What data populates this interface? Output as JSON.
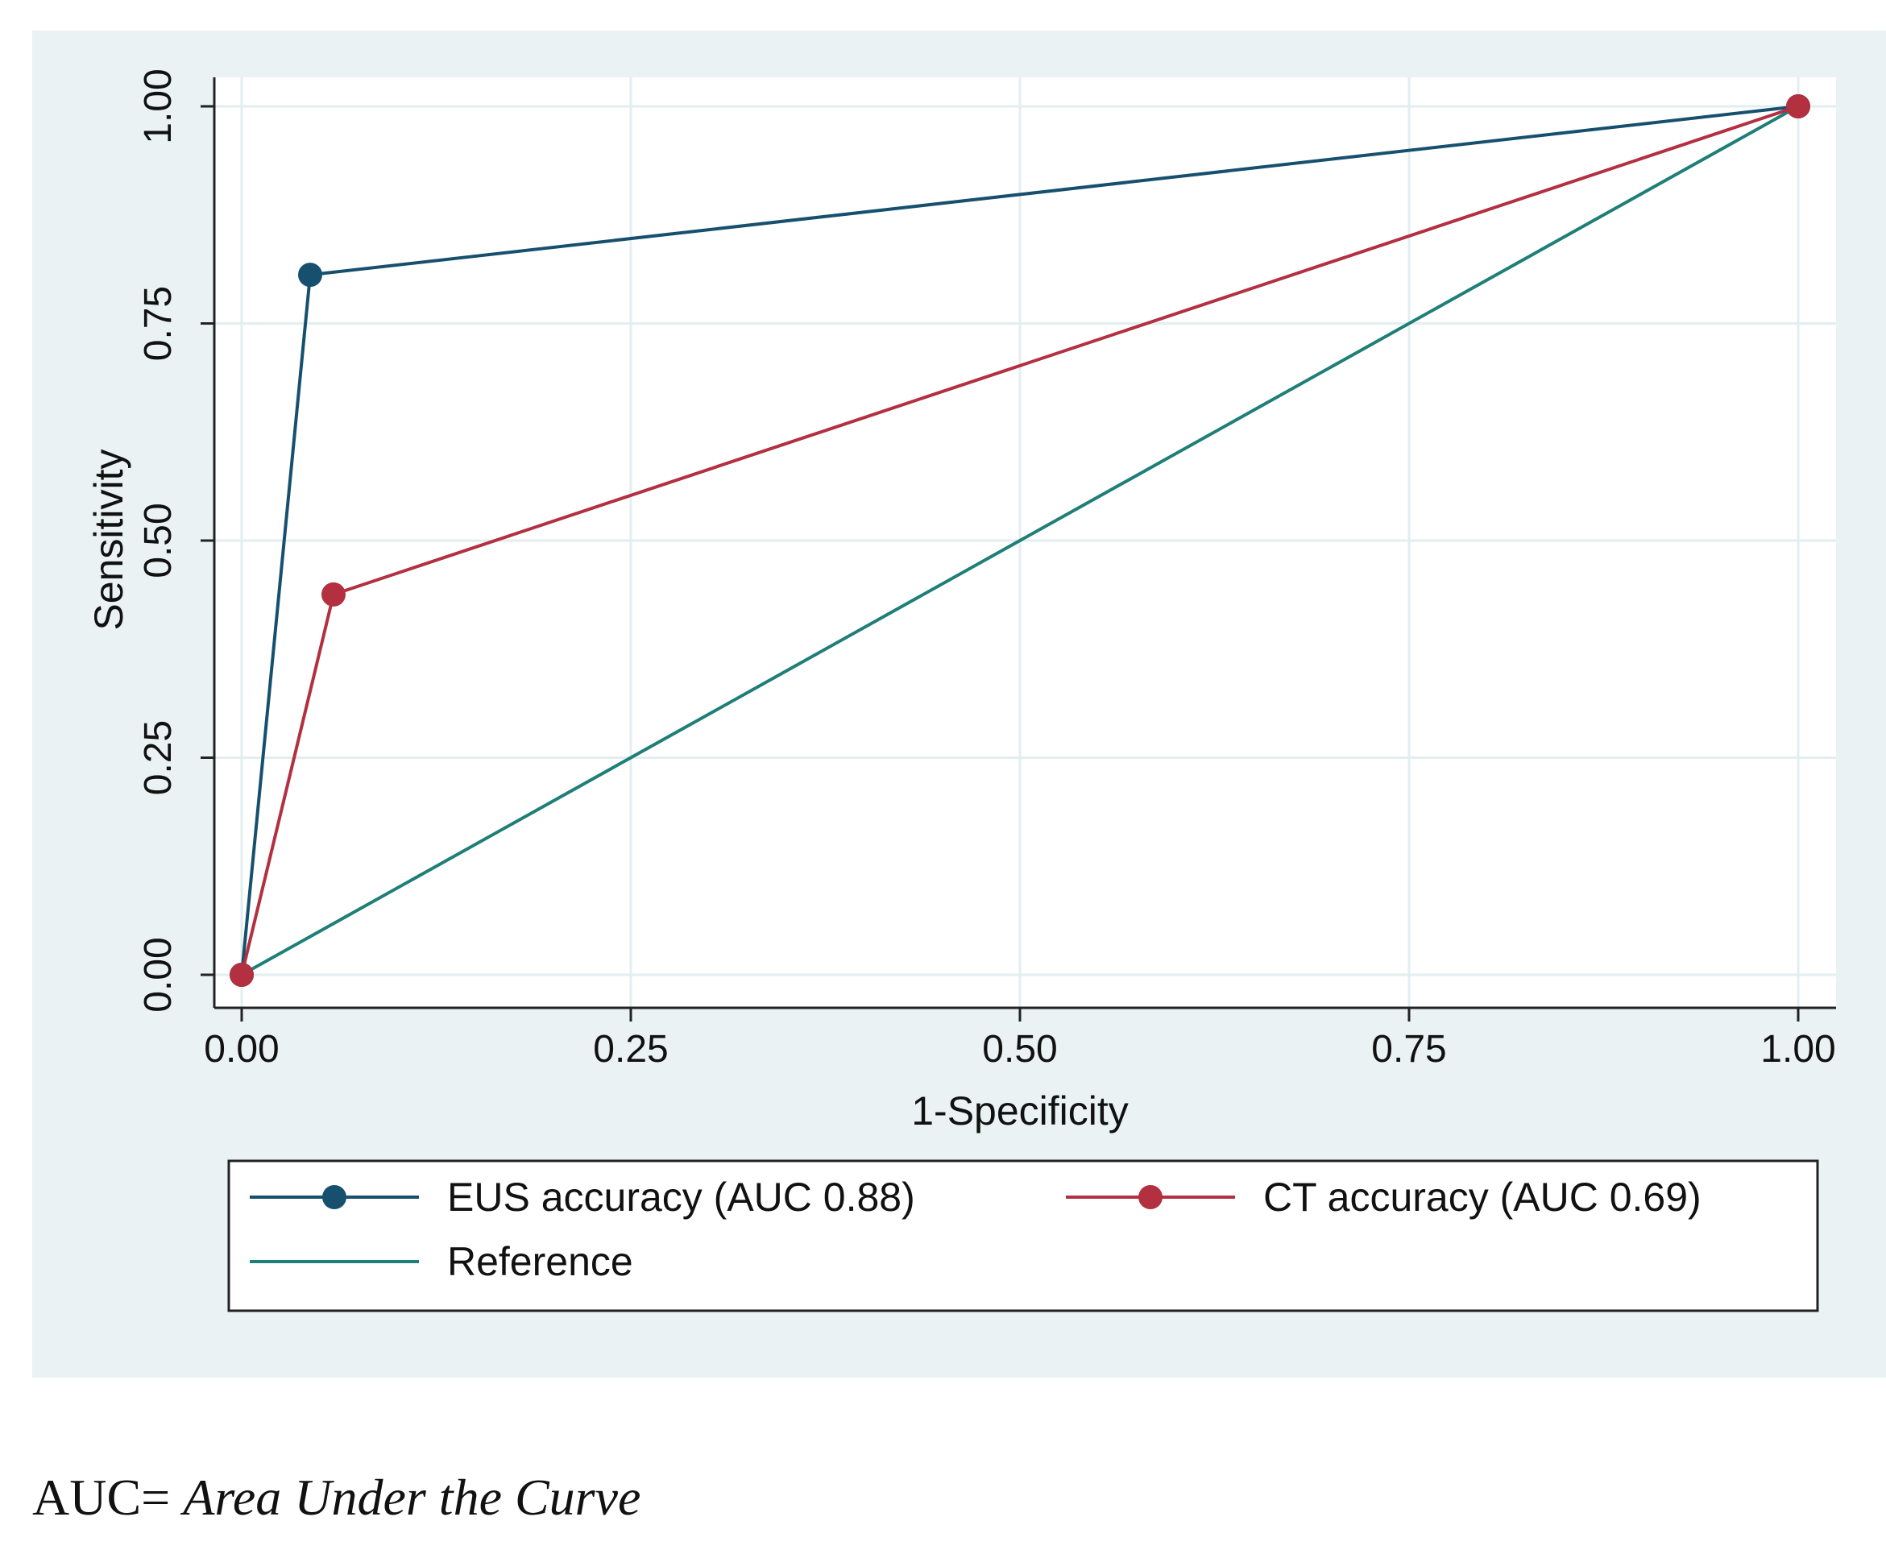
{
  "chart_data": {
    "type": "line",
    "title": "",
    "xlabel": "1-Specificity",
    "ylabel": "Sensitivity",
    "xlim": [
      0,
      1
    ],
    "ylim": [
      0,
      1
    ],
    "xticks": [
      "0.00",
      "0.25",
      "0.50",
      "0.75",
      "1.00"
    ],
    "yticks": [
      "0.00",
      "0.25",
      "0.50",
      "0.75",
      "1.00"
    ],
    "grid": true,
    "legend_position": "bottom",
    "series": [
      {
        "name": "EUS accuracy (AUC 0.88)",
        "color": "#16506e",
        "markers": true,
        "x": [
          0,
          0.044,
          1
        ],
        "y": [
          0,
          0.806,
          1
        ]
      },
      {
        "name": "CT accuracy (AUC 0.69)",
        "color": "#b23040",
        "markers": true,
        "x": [
          0,
          0.059,
          1
        ],
        "y": [
          0,
          0.438,
          1
        ]
      },
      {
        "name": "Reference",
        "color": "#1f7f78",
        "markers": false,
        "x": [
          0,
          1
        ],
        "y": [
          0,
          1
        ]
      }
    ]
  },
  "footnote": {
    "prefix": "AUC= ",
    "definition": "Area Under the Curve"
  },
  "colors": {
    "panel_background": "#eaf2f3",
    "plot_background": "#ffffff",
    "grid": "#e3eef0"
  }
}
